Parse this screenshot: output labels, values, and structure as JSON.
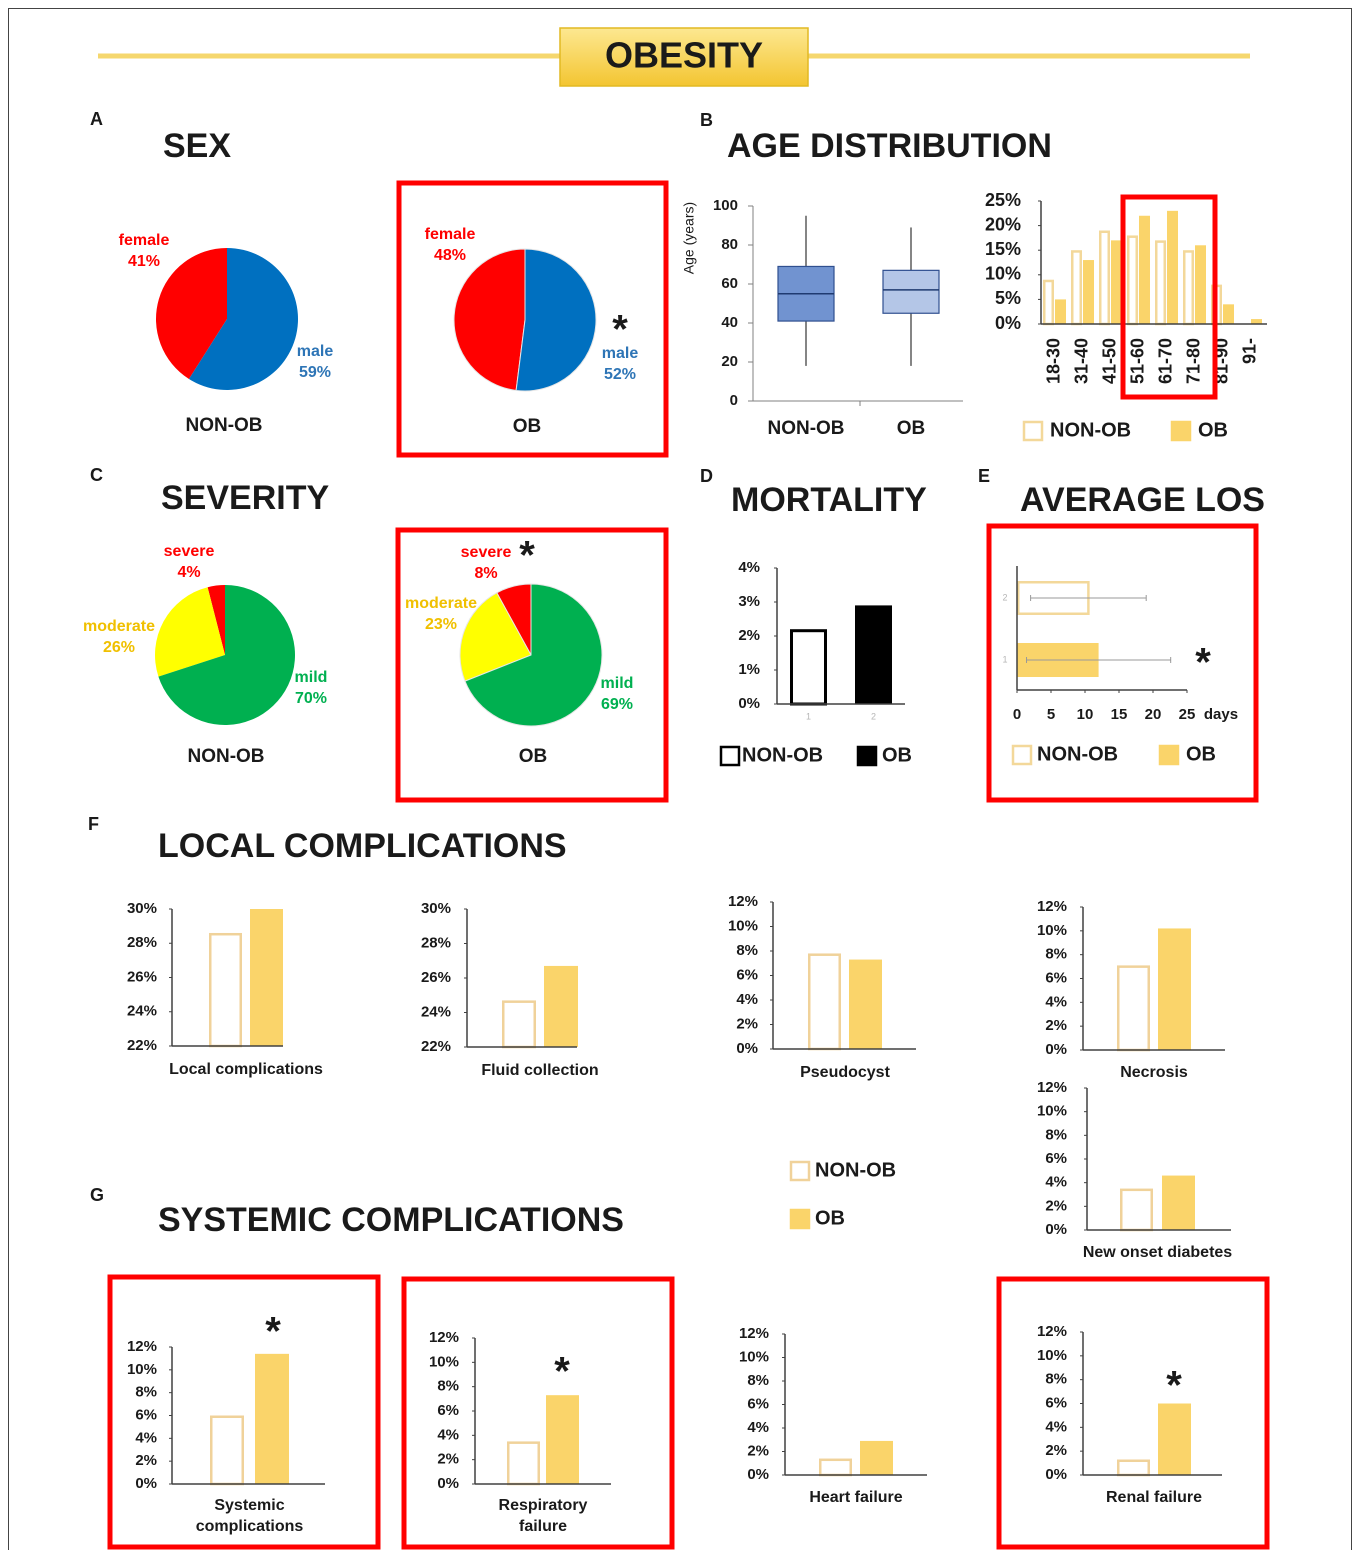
{
  "title": "OBESITY",
  "panels": [
    {
      "letter": "A",
      "title": "SEX"
    },
    {
      "letter": "B",
      "title": "AGE DISTRIBUTION"
    },
    {
      "letter": "C",
      "title": "SEVERITY"
    },
    {
      "letter": "D",
      "title": "MORTALITY"
    },
    {
      "letter": "E",
      "title": "AVERAGE LOS"
    },
    {
      "letter": "F",
      "title": "LOCAL COMPLICATIONS"
    },
    {
      "letter": "G",
      "title": "SYSTEMIC COMPLICATIONS"
    }
  ],
  "shared_legend": [
    "NON-OB",
    "OB"
  ],
  "chart_data": [
    {
      "type": "pie",
      "label": "NON-OB",
      "categories": [
        "female",
        "male"
      ],
      "values": [
        41,
        59
      ],
      "value_labels": [
        "41%",
        "59%"
      ],
      "colors": [
        "#ff0000",
        "#0070c0"
      ]
    },
    {
      "type": "pie",
      "label": "OB",
      "categories": [
        "female",
        "male"
      ],
      "values": [
        48,
        52
      ],
      "value_labels": [
        "48%",
        "52%"
      ],
      "colors": [
        "#ff0000",
        "#0070c0"
      ],
      "annotation": "*",
      "highlight": true
    },
    {
      "type": "box",
      "ylabel": "Age (years)",
      "categories": [
        "NON-OB",
        "OB"
      ],
      "colors": [
        "#7193d0",
        "#b4c6e7"
      ],
      "min": [
        18,
        18
      ],
      "q1": [
        41,
        45
      ],
      "median": [
        55,
        57
      ],
      "q3": [
        69,
        67
      ],
      "max": [
        95,
        89
      ],
      "ylim": [
        0,
        100
      ],
      "yticks": [
        0,
        20,
        40,
        60,
        80,
        100
      ]
    },
    {
      "type": "bar",
      "categories": [
        "18-30",
        "31-40",
        "41-50",
        "51-60",
        "61-70",
        "71-80",
        "81-90",
        "91-"
      ],
      "series": [
        {
          "name": "NON-OB",
          "color": "#f3d89a",
          "fill": false,
          "values": [
            9,
            15,
            19,
            18,
            17,
            15,
            8,
            0
          ]
        },
        {
          "name": "OB",
          "color": "#fad46a",
          "fill": true,
          "values": [
            5,
            13,
            17,
            22,
            23,
            16,
            4,
            1
          ]
        }
      ],
      "ylim": [
        0,
        25
      ],
      "yticks": [
        {
          "value": 0,
          "label": "0%"
        },
        {
          "value": 5,
          "label": "5%"
        },
        {
          "value": 10,
          "label": "10%"
        },
        {
          "value": 15,
          "label": "15%"
        },
        {
          "value": 20,
          "label": "20%"
        },
        {
          "value": 25,
          "label": "25%"
        }
      ],
      "highlight_range": [
        3,
        5
      ]
    },
    {
      "type": "pie",
      "label": "NON-OB",
      "categories": [
        "severe",
        "moderate",
        "mild"
      ],
      "values": [
        4,
        26,
        70
      ],
      "value_labels": [
        "4%",
        "26%",
        "70%"
      ],
      "colors": [
        "#ff0000",
        "#ffff00",
        "#00b050"
      ]
    },
    {
      "type": "pie",
      "label": "OB",
      "categories": [
        "severe",
        "moderate",
        "mild"
      ],
      "values": [
        8,
        23,
        69
      ],
      "value_labels": [
        "8%",
        "23%",
        "69%"
      ],
      "colors": [
        "#ff0000",
        "#ffff00",
        "#00b050"
      ],
      "annotation": "*",
      "highlight": true
    },
    {
      "type": "bar",
      "categories": [
        "1",
        "2"
      ],
      "series": [
        {
          "name": "NON-OB",
          "color": "#000000",
          "fill": false,
          "values": [
            2.2,
            null
          ]
        },
        {
          "name": "OB",
          "color": "#000000",
          "fill": true,
          "values": [
            null,
            2.9
          ]
        }
      ],
      "ylim": [
        0,
        4
      ],
      "yticks": [
        {
          "value": 0,
          "label": "0%"
        },
        {
          "value": 1,
          "label": "1%"
        },
        {
          "value": 2,
          "label": "2%"
        },
        {
          "value": 3,
          "label": "3%"
        },
        {
          "value": 4,
          "label": "4%"
        }
      ]
    },
    {
      "type": "hbar",
      "categories": [
        "1",
        "2"
      ],
      "series": [
        {
          "name": "NON-OB",
          "color": "#f3d89a",
          "fill": false,
          "values": [
            null,
            10.5
          ],
          "errors": [
            null,
            8.5
          ]
        },
        {
          "name": "OB",
          "color": "#fad46a",
          "fill": true,
          "values": [
            12,
            null
          ],
          "errors": [
            10.6,
            null
          ]
        }
      ],
      "xlim": [
        0,
        25
      ],
      "xticks": [
        0,
        5,
        10,
        15,
        20,
        25
      ],
      "xlabel": "days",
      "annotation": "*",
      "highlight": true
    },
    {
      "type": "bar",
      "categories": [
        "Local complications"
      ],
      "series": [
        {
          "color": "#f0d29a",
          "fill": false,
          "values": [
            28.6
          ]
        },
        {
          "color": "#fad46a",
          "fill": true,
          "values": [
            30
          ]
        }
      ],
      "ylim": [
        22,
        30
      ],
      "yticks": [
        {
          "value": 22,
          "label": "22%"
        },
        {
          "value": 24,
          "label": "24%"
        },
        {
          "value": 26,
          "label": "26%"
        },
        {
          "value": 28,
          "label": "28%"
        },
        {
          "value": 30,
          "label": "30%"
        }
      ]
    },
    {
      "type": "bar",
      "categories": [
        "Fluid collection"
      ],
      "series": [
        {
          "color": "#f0d29a",
          "fill": false,
          "values": [
            24.7
          ]
        },
        {
          "color": "#fad46a",
          "fill": true,
          "values": [
            26.7
          ]
        }
      ],
      "ylim": [
        22,
        30
      ],
      "yticks": [
        {
          "value": 22,
          "label": "22%"
        },
        {
          "value": 24,
          "label": "24%"
        },
        {
          "value": 26,
          "label": "26%"
        },
        {
          "value": 28,
          "label": "28%"
        },
        {
          "value": 30,
          "label": "30%"
        }
      ]
    },
    {
      "type": "bar",
      "categories": [
        "Pseudocyst"
      ],
      "series": [
        {
          "color": "#f0d29a",
          "fill": false,
          "values": [
            7.8
          ]
        },
        {
          "color": "#fad46a",
          "fill": true,
          "values": [
            7.3
          ]
        }
      ],
      "ylim": [
        0,
        12
      ],
      "yticks": [
        {
          "value": 0,
          "label": "0%"
        },
        {
          "value": 2,
          "label": "2%"
        },
        {
          "value": 4,
          "label": "4%"
        },
        {
          "value": 6,
          "label": "6%"
        },
        {
          "value": 8,
          "label": "8%"
        },
        {
          "value": 10,
          "label": "10%"
        },
        {
          "value": 12,
          "label": "12%"
        }
      ]
    },
    {
      "type": "bar",
      "categories": [
        "Necrosis"
      ],
      "series": [
        {
          "color": "#f0d29a",
          "fill": false,
          "values": [
            7.1
          ]
        },
        {
          "color": "#fad46a",
          "fill": true,
          "values": [
            10.2
          ]
        }
      ],
      "ylim": [
        0,
        12
      ],
      "yticks": [
        {
          "value": 0,
          "label": "0%"
        },
        {
          "value": 2,
          "label": "2%"
        },
        {
          "value": 4,
          "label": "4%"
        },
        {
          "value": 6,
          "label": "6%"
        },
        {
          "value": 8,
          "label": "8%"
        },
        {
          "value": 10,
          "label": "10%"
        },
        {
          "value": 12,
          "label": "12%"
        }
      ]
    },
    {
      "type": "bar",
      "categories": [
        "New onset diabetes"
      ],
      "series": [
        {
          "color": "#f0d29a",
          "fill": false,
          "values": [
            3.5
          ]
        },
        {
          "color": "#fad46a",
          "fill": true,
          "values": [
            4.6
          ]
        }
      ],
      "ylim": [
        0,
        12
      ],
      "yticks": [
        {
          "value": 0,
          "label": "0%"
        },
        {
          "value": 2,
          "label": "2%"
        },
        {
          "value": 4,
          "label": "4%"
        },
        {
          "value": 6,
          "label": "6%"
        },
        {
          "value": 8,
          "label": "8%"
        },
        {
          "value": 10,
          "label": "10%"
        },
        {
          "value": 12,
          "label": "12%"
        }
      ]
    },
    {
      "type": "bar",
      "categories": [
        "Systemic complications"
      ],
      "annotation": "*",
      "highlight": true,
      "series": [
        {
          "color": "#f0d29a",
          "fill": false,
          "values": [
            6.0
          ]
        },
        {
          "color": "#fad46a",
          "fill": true,
          "values": [
            11.4
          ]
        }
      ],
      "ylim": [
        0,
        12
      ],
      "yticks": [
        {
          "value": 0,
          "label": "0%"
        },
        {
          "value": 2,
          "label": "2%"
        },
        {
          "value": 4,
          "label": "4%"
        },
        {
          "value": 6,
          "label": "6%"
        },
        {
          "value": 8,
          "label": "8%"
        },
        {
          "value": 10,
          "label": "10%"
        },
        {
          "value": 12,
          "label": "12%"
        }
      ]
    },
    {
      "type": "bar",
      "categories": [
        "Respiratory failure"
      ],
      "annotation": "*",
      "highlight": true,
      "series": [
        {
          "color": "#f0d29a",
          "fill": false,
          "values": [
            3.5
          ]
        },
        {
          "color": "#fad46a",
          "fill": true,
          "values": [
            7.3
          ]
        }
      ],
      "ylim": [
        0,
        12
      ],
      "yticks": [
        {
          "value": 0,
          "label": "0%"
        },
        {
          "value": 2,
          "label": "2%"
        },
        {
          "value": 4,
          "label": "4%"
        },
        {
          "value": 6,
          "label": "6%"
        },
        {
          "value": 8,
          "label": "8%"
        },
        {
          "value": 10,
          "label": "10%"
        },
        {
          "value": 12,
          "label": "12%"
        }
      ]
    },
    {
      "type": "bar",
      "categories": [
        "Heart failure"
      ],
      "series": [
        {
          "color": "#f0d29a",
          "fill": false,
          "values": [
            1.4
          ]
        },
        {
          "color": "#fad46a",
          "fill": true,
          "values": [
            2.9
          ]
        }
      ],
      "ylim": [
        0,
        12
      ],
      "yticks": [
        {
          "value": 0,
          "label": "0%"
        },
        {
          "value": 2,
          "label": "2%"
        },
        {
          "value": 4,
          "label": "4%"
        },
        {
          "value": 6,
          "label": "6%"
        },
        {
          "value": 8,
          "label": "8%"
        },
        {
          "value": 10,
          "label": "10%"
        },
        {
          "value": 12,
          "label": "12%"
        }
      ]
    },
    {
      "type": "bar",
      "categories": [
        "Renal failure"
      ],
      "annotation": "*",
      "highlight": true,
      "series": [
        {
          "color": "#f0d29a",
          "fill": false,
          "values": [
            1.3
          ]
        },
        {
          "color": "#fad46a",
          "fill": true,
          "values": [
            6.0
          ]
        }
      ],
      "ylim": [
        0,
        12
      ],
      "yticks": [
        {
          "value": 0,
          "label": "0%"
        },
        {
          "value": 2,
          "label": "2%"
        },
        {
          "value": 4,
          "label": "4%"
        },
        {
          "value": 6,
          "label": "6%"
        },
        {
          "value": 8,
          "label": "8%"
        },
        {
          "value": 10,
          "label": "10%"
        },
        {
          "value": 12,
          "label": "12%"
        }
      ]
    }
  ]
}
